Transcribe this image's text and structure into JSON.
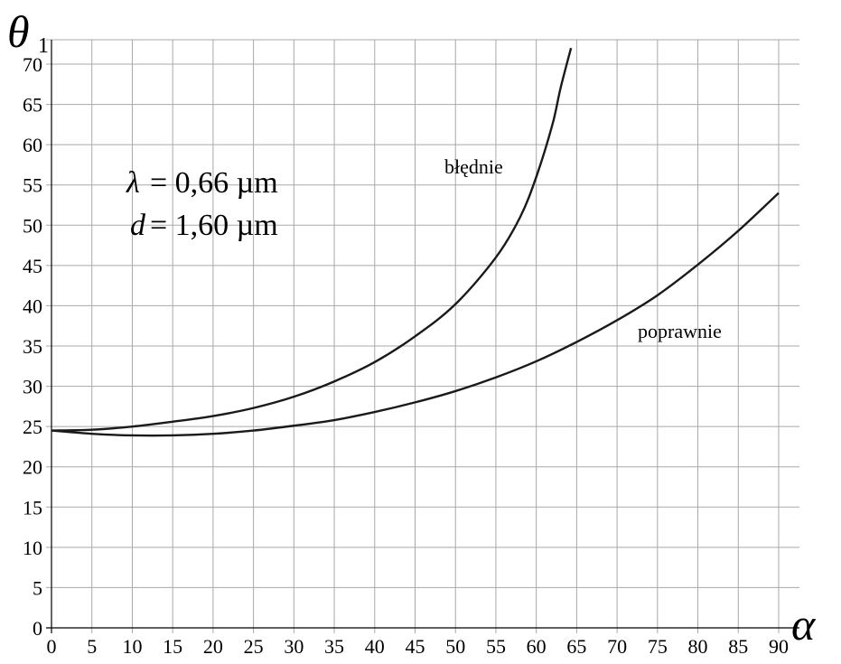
{
  "chart_data": {
    "type": "line",
    "xlabel": "α",
    "ylabel": "θ",
    "ylabel_subscript": "1",
    "xlim": [
      0,
      90
    ],
    "ylim": [
      0,
      70
    ],
    "x_ticks": [
      0,
      5,
      10,
      15,
      20,
      25,
      30,
      35,
      40,
      45,
      50,
      55,
      60,
      65,
      70,
      75,
      80,
      85,
      90
    ],
    "y_ticks": [
      0,
      5,
      10,
      15,
      20,
      25,
      30,
      35,
      40,
      45,
      50,
      55,
      60,
      65,
      70
    ],
    "grid": true,
    "annotations": {
      "lambda_symbol": "λ",
      "lambda_value": "= 0,66 µm",
      "d_symbol": "d",
      "d_value": "= 1,60 µm"
    },
    "series": [
      {
        "name": "błędnie",
        "x": [
          0,
          5,
          10,
          15,
          20,
          25,
          30,
          35,
          40,
          45,
          50,
          55,
          58,
          60,
          62,
          63,
          64.3
        ],
        "y": [
          24.5,
          24.6,
          25.0,
          25.6,
          26.3,
          27.3,
          28.7,
          30.6,
          33.0,
          36.2,
          40.2,
          46.0,
          51.0,
          56.0,
          62.5,
          67.0,
          72.0
        ]
      },
      {
        "name": "poprawnie",
        "x": [
          0,
          5,
          10,
          15,
          20,
          25,
          30,
          35,
          40,
          45,
          50,
          55,
          60,
          65,
          70,
          75,
          80,
          85,
          90
        ],
        "y": [
          24.5,
          24.1,
          23.9,
          23.9,
          24.1,
          24.5,
          25.1,
          25.8,
          26.8,
          28.0,
          29.4,
          31.1,
          33.1,
          35.5,
          38.2,
          41.3,
          45.1,
          49.3,
          54.0
        ]
      }
    ]
  }
}
